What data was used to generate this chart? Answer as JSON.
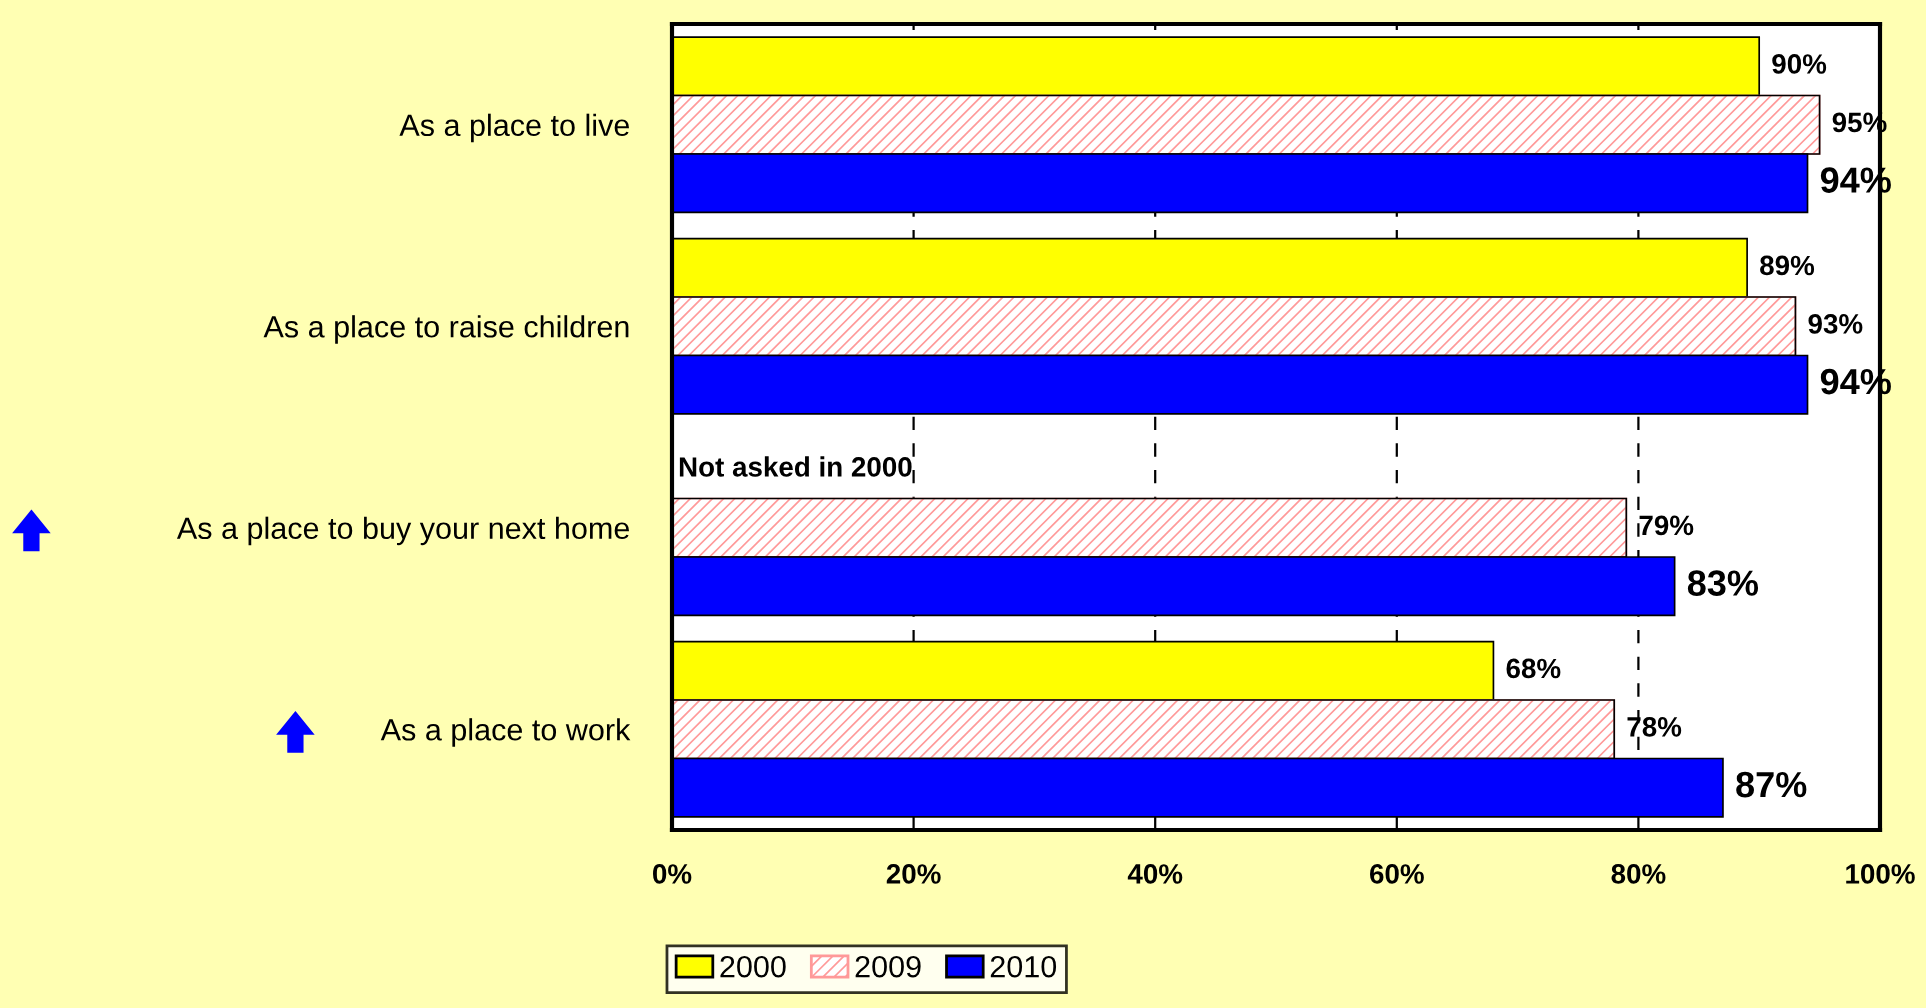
{
  "chart_data": {
    "type": "bar",
    "orientation": "horizontal",
    "categories": [
      "As a place to live",
      "As a place to raise children",
      "As a place to buy your next home",
      "As a place to work"
    ],
    "series": [
      {
        "name": "2000",
        "color": "#ffff00",
        "values": [
          90,
          89,
          null,
          68
        ],
        "value_labels": [
          "90%",
          "89%",
          null,
          "68%"
        ]
      },
      {
        "name": "2009",
        "color": "#ff9999",
        "values": [
          95,
          93,
          79,
          78
        ],
        "value_labels": [
          "95%",
          "93%",
          "79%",
          "78%"
        ]
      },
      {
        "name": "2010",
        "color": "#0000ff",
        "values": [
          94,
          94,
          83,
          87
        ],
        "value_labels": [
          "94%",
          "94%",
          "83%",
          "87%"
        ]
      }
    ],
    "xlim": [
      0,
      100
    ],
    "xticks": [
      {
        "value": 0,
        "label": "0%"
      },
      {
        "value": 20,
        "label": "20%"
      },
      {
        "value": 40,
        "label": "40%"
      },
      {
        "value": 60,
        "label": "60%"
      },
      {
        "value": 80,
        "label": "80%"
      },
      {
        "value": 100,
        "label": "100%"
      }
    ],
    "grid": "x",
    "legend": "bottom",
    "annotations": [
      "Not asked in 2000"
    ]
  }
}
